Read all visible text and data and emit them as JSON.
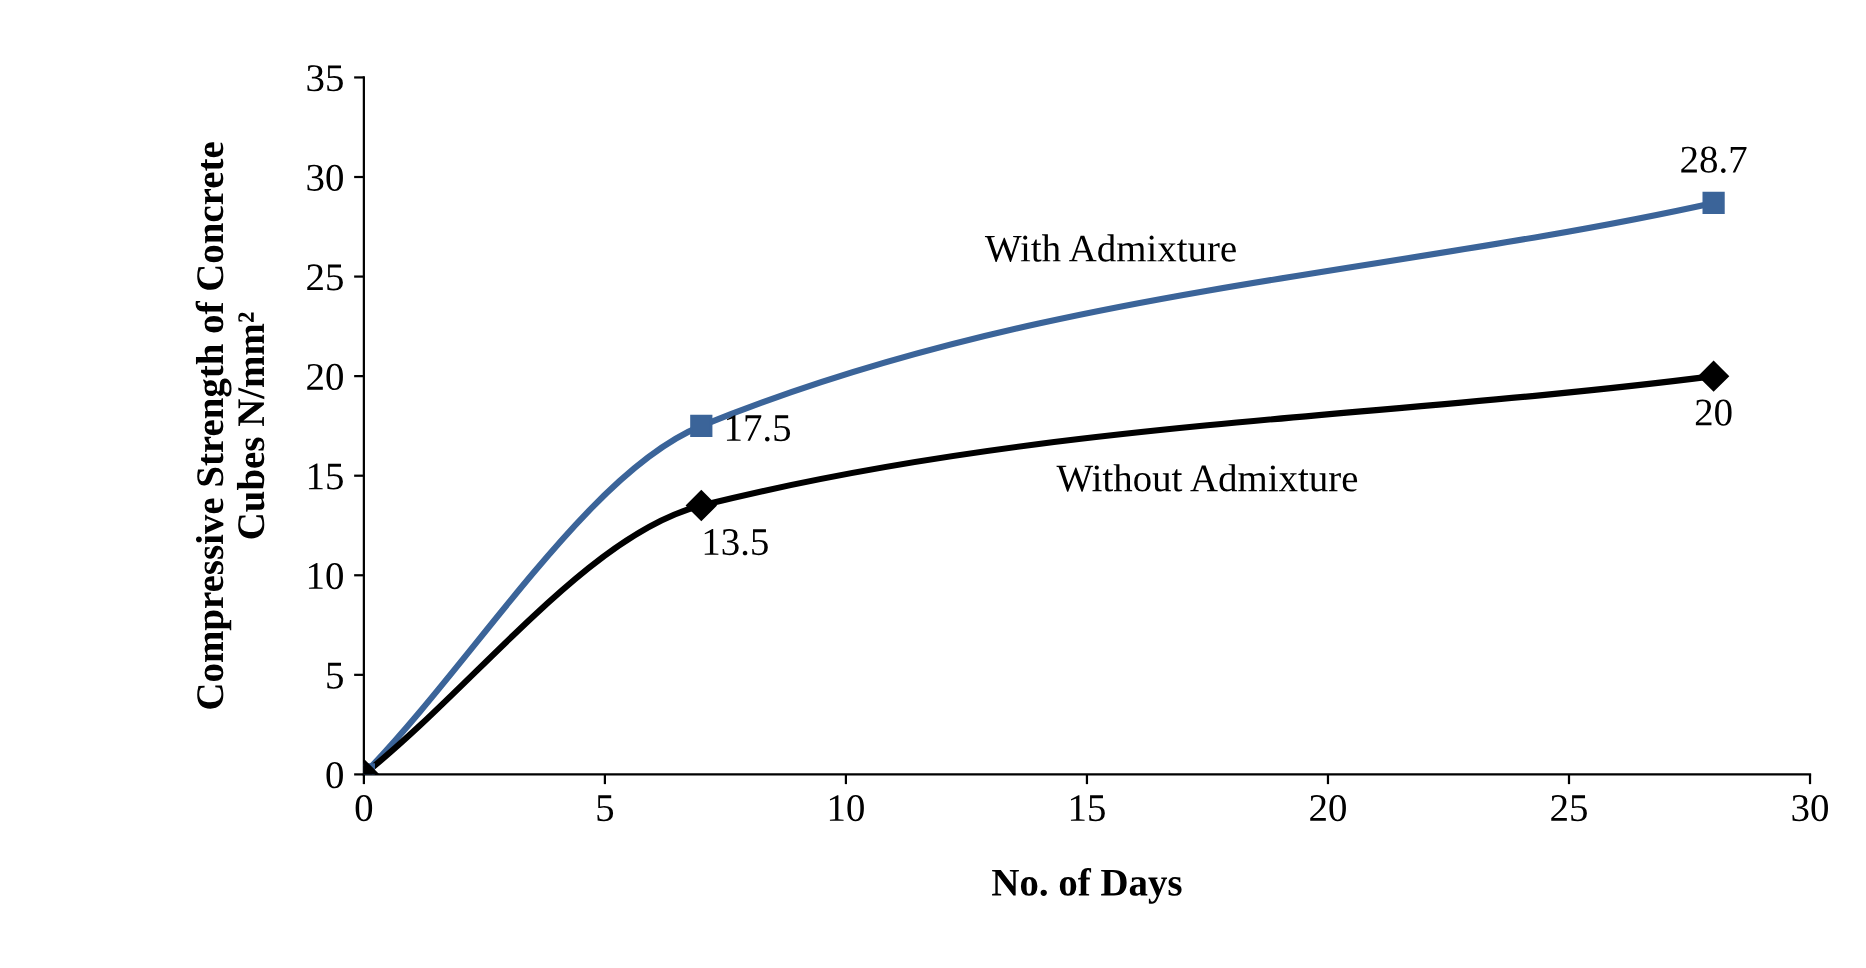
{
  "chart_data": {
    "type": "line",
    "xlabel": "No. of Days",
    "ylabel": "Compressive Strength of Concrete\nCubes N/mm²",
    "xlim": [
      0,
      30
    ],
    "xticks": [
      0,
      5,
      10,
      15,
      20,
      25,
      30
    ],
    "ylim": [
      0,
      35
    ],
    "yticks": [
      0,
      5,
      10,
      15,
      20,
      25,
      30,
      35
    ],
    "grid": false,
    "legend": false,
    "series": [
      {
        "name": "With Admixture",
        "color": "#3b6499",
        "marker": "square",
        "x": [
          0,
          7,
          28
        ],
        "values": [
          0,
          17.5,
          28.7
        ],
        "value_labels": [
          null,
          "17.5",
          "28.7"
        ]
      },
      {
        "name": "Without Admixture",
        "color": "#000000",
        "marker": "diamond",
        "x": [
          0,
          7,
          28
        ],
        "values": [
          0,
          13.5,
          20
        ],
        "value_labels": [
          null,
          "13.5",
          "20"
        ]
      }
    ]
  }
}
